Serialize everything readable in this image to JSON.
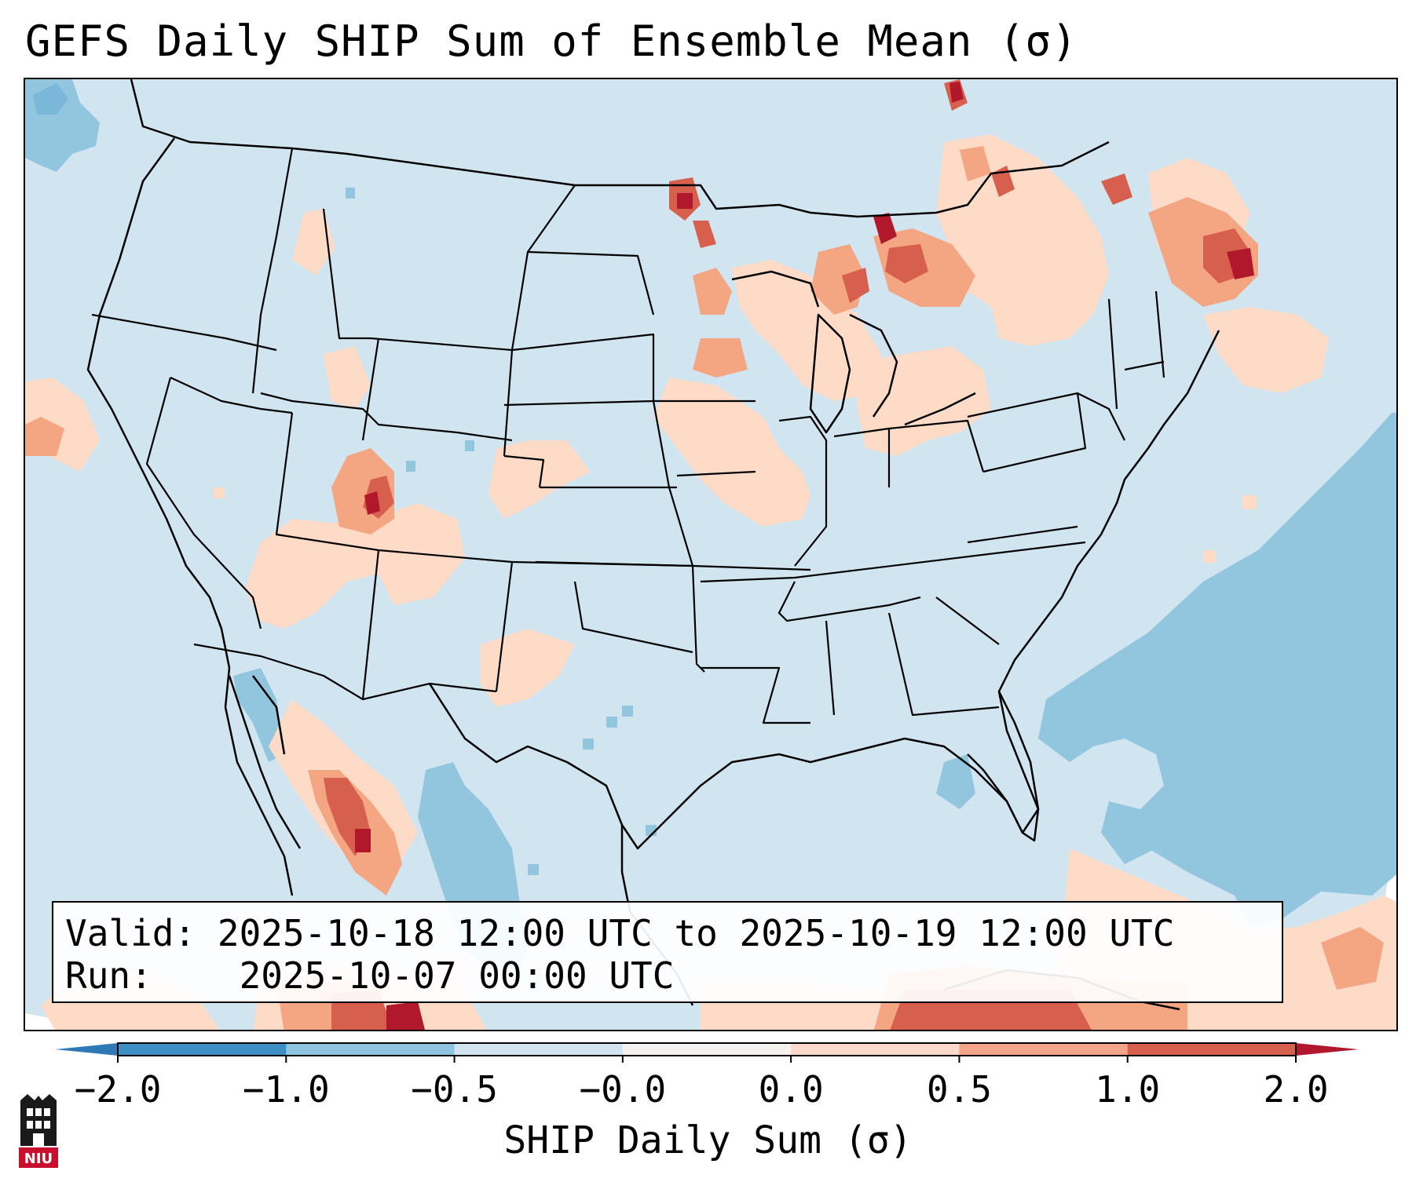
{
  "title": "GEFS Daily SHIP Sum of Ensemble Mean (σ)",
  "info": {
    "valid_label": "Valid:",
    "valid_value": "2025-10-18 12:00 UTC to 2025-10-19 12:00 UTC",
    "run_label": "Run:",
    "run_value": "2025-10-07 00:00 UTC"
  },
  "colorbar": {
    "label": "SHIP Daily Sum (σ)",
    "ticks": [
      "−2.0",
      "−1.0",
      "−0.5",
      "−0.0",
      "0.0",
      "0.5",
      "1.0",
      "2.0"
    ],
    "bin_colors": [
      "#3d8fc4",
      "#8ec4de",
      "#d2e4ef",
      "#f4f1ef",
      "#fbdacb",
      "#f3a48b",
      "#d6604d"
    ],
    "under_color": "#2f79b5",
    "over_color": "#b2182b"
  },
  "field_colors": {
    "background": "#d1e5f0",
    "weak_negative": "#92c5de",
    "moderate_negative": "#6aaed6",
    "weak_positive": "#fddbc7",
    "moderate_positive": "#f4a582",
    "strong_positive": "#d6604d",
    "extreme_positive": "#b2182b"
  },
  "logo": {
    "text": "NIU",
    "color": "#c8102e"
  }
}
